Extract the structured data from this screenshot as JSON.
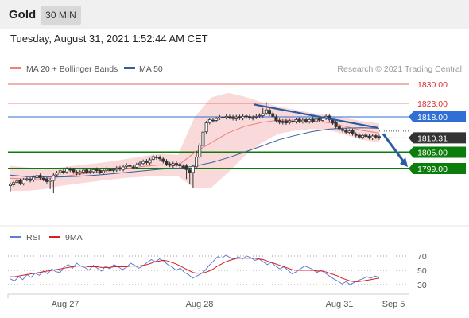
{
  "header": {
    "instrument": "Gold",
    "timeframe": "30 MIN"
  },
  "timestamp": "Tuesday, August 31, 2021 1:52:44 AM CET",
  "credit": "Research © 2021 Trading Central",
  "colors": {
    "resistance": "#d93030",
    "pivot": "#2f6fd6",
    "support": "#0a7d0a",
    "bollinger": "#f7c9c9",
    "ma20": "#f08080",
    "ma50": "#3a5f95",
    "candle": "#333333",
    "current": "#333333",
    "rsi": "#5a7fd8",
    "rsi_ma": "#d42020",
    "arrow": "#2a5aa0"
  },
  "chart_data": [
    {
      "type": "candlestick",
      "legend": [
        {
          "name": "MA 20 + Bollinger Bands",
          "color": "#f08080"
        },
        {
          "name": "MA 50",
          "color": "#3a5f95"
        }
      ],
      "levels": [
        {
          "value": 1830.0,
          "label": "1830.00",
          "kind": "resistance"
        },
        {
          "value": 1823.0,
          "label": "1823.00",
          "kind": "resistance"
        },
        {
          "value": 1818.0,
          "label": "1818.00",
          "kind": "pivot"
        },
        {
          "value": 1805.0,
          "label": "1805.00",
          "kind": "support"
        },
        {
          "value": 1799.0,
          "label": "1799.00",
          "kind": "support"
        }
      ],
      "current_price": {
        "value": 1810.31,
        "label": "1810.31"
      },
      "x_ticks": [
        "Aug 27",
        "Aug 28",
        "Aug 31",
        "Sep 5"
      ],
      "close": [
        1793.2,
        1793.8,
        1794.4,
        1793.6,
        1794.8,
        1795.2,
        1794.6,
        1795.8,
        1796.4,
        1795.6,
        1795.0,
        1794.2,
        1794.8,
        1796.6,
        1797.4,
        1798.2,
        1797.6,
        1798.8,
        1798.4,
        1797.8,
        1797.2,
        1797.8,
        1798.4,
        1797.6,
        1798.0,
        1798.6,
        1798.2,
        1797.6,
        1798.2,
        1798.8,
        1798.2,
        1798.6,
        1799.2,
        1798.8,
        1799.6,
        1800.2,
        1799.8,
        1799.4,
        1800.4,
        1801.0,
        1801.6,
        1801.2,
        1802.2,
        1803.4,
        1803.0,
        1802.6,
        1801.6,
        1800.6,
        1800.2,
        1800.8,
        1800.4,
        1800.0,
        1799.8,
        1798.6,
        1797.4,
        1799.8,
        1803.2,
        1807.6,
        1812.4,
        1815.8,
        1817.0,
        1816.6,
        1817.4,
        1818.0,
        1817.6,
        1818.2,
        1817.8,
        1817.4,
        1818.0,
        1817.6,
        1818.2,
        1818.0,
        1817.6,
        1817.8,
        1818.2,
        1818.6,
        1819.2,
        1820.6,
        1819.0,
        1818.2,
        1816.6,
        1816.0,
        1816.4,
        1815.8,
        1816.6,
        1816.2,
        1817.0,
        1816.4,
        1816.8,
        1816.4,
        1817.0,
        1816.4,
        1817.2,
        1816.8,
        1817.4,
        1818.2,
        1817.0,
        1815.8,
        1814.4,
        1813.6,
        1813.0,
        1812.4,
        1812.8,
        1811.8,
        1811.2,
        1810.6,
        1811.2,
        1810.8,
        1810.4,
        1811.0,
        1810.6,
        1810.3
      ],
      "open_shift": [
        0.4,
        -0.6,
        0.3,
        0.5,
        -0.5,
        0.6,
        -0.4,
        0.6,
        -0.5,
        0.3,
        -0.4,
        0.5
      ],
      "bollinger_upper": [
        1800.0,
        1799.4,
        1799.0,
        1799.4,
        1800.2,
        1800.8,
        1801.6,
        1802.6,
        1803.6,
        1804.4,
        1804.0,
        1818.0,
        1825.2,
        1826.8,
        1825.4,
        1823.4,
        1821.8,
        1820.6,
        1819.4,
        1818.6,
        1817.6,
        1816.4,
        1815.6
      ],
      "bollinger_lower": [
        1790.8,
        1790.8,
        1791.4,
        1792.6,
        1793.4,
        1794.2,
        1795.0,
        1795.6,
        1796.0,
        1796.4,
        1796.2,
        1791.8,
        1792.0,
        1797.6,
        1803.8,
        1808.6,
        1811.8,
        1813.0,
        1813.6,
        1813.2,
        1811.4,
        1809.6,
        1808.6
      ],
      "ma20": [
        1795.4,
        1795.1,
        1795.2,
        1796.0,
        1796.8,
        1797.5,
        1798.3,
        1799.1,
        1799.8,
        1800.4,
        1800.1,
        1804.9,
        1808.6,
        1812.2,
        1814.6,
        1816.0,
        1816.8,
        1816.8,
        1816.5,
        1815.9,
        1814.5,
        1813.0,
        1812.1
      ],
      "ma50": [
        1796.6,
        1796.0,
        1795.9,
        1795.9,
        1796.1,
        1796.5,
        1797.0,
        1797.6,
        1798.2,
        1798.8,
        1799.1,
        1799.9,
        1801.2,
        1803.0,
        1805.1,
        1807.3,
        1809.6,
        1811.2,
        1812.6,
        1813.5,
        1813.9,
        1814.0,
        1813.8
      ]
    },
    {
      "type": "line",
      "legend": [
        {
          "name": "RSI",
          "color": "#5a7fd8"
        },
        {
          "name": "9MA",
          "color": "#d42020"
        }
      ],
      "y_ticks": [
        70,
        50,
        30
      ],
      "rsi": [
        38,
        35,
        41,
        37,
        44,
        40,
        46,
        43,
        49,
        45,
        52,
        48,
        47,
        55,
        58,
        53,
        60,
        56,
        54,
        50,
        57,
        53,
        49,
        56,
        52,
        58,
        55,
        51,
        54,
        60,
        57,
        53,
        56,
        61,
        65,
        62,
        66,
        63,
        58,
        55,
        50,
        53,
        47,
        44,
        39,
        42,
        45,
        50,
        57,
        63,
        69,
        67,
        71,
        68,
        65,
        69,
        66,
        70,
        68,
        64,
        66,
        62,
        58,
        61,
        56,
        52,
        55,
        50,
        45,
        48,
        52,
        56,
        54,
        51,
        47,
        50,
        46,
        42,
        38,
        35,
        31,
        34,
        30,
        33,
        36,
        38,
        41,
        39,
        42,
        40
      ],
      "rsi_ma": [
        41,
        41,
        42,
        43,
        44,
        45,
        46,
        47,
        48,
        49,
        50,
        51,
        52,
        53,
        54,
        55,
        56,
        56,
        56,
        55,
        55,
        55,
        54,
        54,
        54,
        55,
        55,
        55,
        55,
        56,
        56,
        56,
        57,
        58,
        60,
        62,
        63,
        64,
        63,
        61,
        59,
        56,
        53,
        50,
        47,
        46,
        46,
        47,
        49,
        52,
        56,
        59,
        62,
        64,
        66,
        67,
        67,
        67,
        67,
        67,
        66,
        65,
        63,
        61,
        59,
        57,
        55,
        53,
        51,
        50,
        50,
        50,
        50,
        50,
        49,
        49,
        48,
        46,
        44,
        42,
        39,
        37,
        35,
        34,
        34,
        35,
        36,
        37,
        38,
        39
      ]
    }
  ]
}
